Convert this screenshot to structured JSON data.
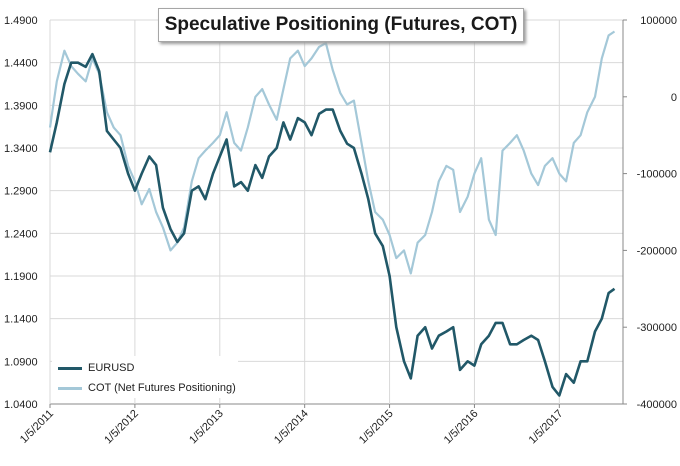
{
  "chart_data": {
    "type": "line",
    "title": "Speculative Positioning (Futures, COT)",
    "x_ticks": [
      "1/5/2011",
      "1/5/2012",
      "1/5/2013",
      "1/5/2014",
      "1/5/2015",
      "1/5/2016",
      "1/5/2017"
    ],
    "x_range": [
      2011.0,
      2017.75
    ],
    "y_left": {
      "ticks": [
        "1.4900",
        "1.4400",
        "1.3900",
        "1.3400",
        "1.2900",
        "1.2400",
        "1.1900",
        "1.1400",
        "1.0900",
        "1.0400"
      ],
      "range": [
        1.04,
        1.49
      ]
    },
    "y_right": {
      "ticks": [
        "100000",
        "0",
        "-100000",
        "-200000",
        "-300000",
        "-400000"
      ],
      "range": [
        -400000,
        100000
      ]
    },
    "grid": true,
    "legend_position": "bottom-left",
    "series": [
      {
        "name": "EURUSD",
        "axis": "left",
        "color": "#215868",
        "x": [
          2011.0,
          2011.08,
          2011.17,
          2011.25,
          2011.33,
          2011.42,
          2011.5,
          2011.58,
          2011.67,
          2011.75,
          2011.83,
          2011.92,
          2012.0,
          2012.08,
          2012.17,
          2012.25,
          2012.33,
          2012.42,
          2012.5,
          2012.58,
          2012.67,
          2012.75,
          2012.83,
          2012.92,
          2013.0,
          2013.08,
          2013.17,
          2013.25,
          2013.33,
          2013.42,
          2013.5,
          2013.58,
          2013.67,
          2013.75,
          2013.83,
          2013.92,
          2014.0,
          2014.08,
          2014.17,
          2014.25,
          2014.33,
          2014.42,
          2014.5,
          2014.58,
          2014.67,
          2014.75,
          2014.83,
          2014.92,
          2015.0,
          2015.08,
          2015.17,
          2015.25,
          2015.33,
          2015.42,
          2015.5,
          2015.58,
          2015.67,
          2015.75,
          2015.83,
          2015.92,
          2016.0,
          2016.08,
          2016.17,
          2016.25,
          2016.33,
          2016.42,
          2016.5,
          2016.58,
          2016.67,
          2016.75,
          2016.83,
          2016.92,
          2017.0,
          2017.08,
          2017.17,
          2017.25,
          2017.33,
          2017.42,
          2017.5,
          2017.58,
          2017.65
        ],
        "values": [
          1.335,
          1.37,
          1.415,
          1.44,
          1.44,
          1.435,
          1.45,
          1.43,
          1.36,
          1.35,
          1.34,
          1.31,
          1.29,
          1.31,
          1.33,
          1.32,
          1.27,
          1.245,
          1.23,
          1.24,
          1.29,
          1.295,
          1.28,
          1.31,
          1.33,
          1.35,
          1.295,
          1.3,
          1.29,
          1.32,
          1.305,
          1.33,
          1.34,
          1.37,
          1.35,
          1.375,
          1.37,
          1.355,
          1.38,
          1.385,
          1.385,
          1.36,
          1.345,
          1.34,
          1.31,
          1.28,
          1.24,
          1.225,
          1.19,
          1.13,
          1.09,
          1.07,
          1.12,
          1.13,
          1.105,
          1.12,
          1.125,
          1.13,
          1.08,
          1.09,
          1.085,
          1.11,
          1.12,
          1.135,
          1.135,
          1.11,
          1.11,
          1.115,
          1.12,
          1.115,
          1.09,
          1.06,
          1.05,
          1.075,
          1.065,
          1.09,
          1.09,
          1.125,
          1.14,
          1.17,
          1.175
        ]
      },
      {
        "name": "COT (Net Futures Positioning)",
        "axis": "right",
        "color": "#a4c8d8",
        "x": [
          2011.0,
          2011.08,
          2011.17,
          2011.25,
          2011.33,
          2011.42,
          2011.5,
          2011.58,
          2011.67,
          2011.75,
          2011.83,
          2011.92,
          2012.0,
          2012.08,
          2012.17,
          2012.25,
          2012.33,
          2012.42,
          2012.5,
          2012.58,
          2012.67,
          2012.75,
          2012.83,
          2012.92,
          2013.0,
          2013.08,
          2013.17,
          2013.25,
          2013.33,
          2013.42,
          2013.5,
          2013.58,
          2013.67,
          2013.75,
          2013.83,
          2013.92,
          2014.0,
          2014.08,
          2014.17,
          2014.25,
          2014.33,
          2014.42,
          2014.5,
          2014.58,
          2014.67,
          2014.75,
          2014.83,
          2014.92,
          2015.0,
          2015.08,
          2015.17,
          2015.25,
          2015.33,
          2015.42,
          2015.5,
          2015.58,
          2015.67,
          2015.75,
          2015.83,
          2015.92,
          2016.0,
          2016.08,
          2016.17,
          2016.25,
          2016.33,
          2016.42,
          2016.5,
          2016.58,
          2016.67,
          2016.75,
          2016.83,
          2016.92,
          2017.0,
          2017.08,
          2017.17,
          2017.25,
          2017.33,
          2017.42,
          2017.5,
          2017.58,
          2017.65
        ],
        "values": [
          -40000,
          20000,
          60000,
          40000,
          30000,
          20000,
          50000,
          30000,
          -20000,
          -40000,
          -50000,
          -90000,
          -110000,
          -140000,
          -120000,
          -150000,
          -170000,
          -200000,
          -190000,
          -170000,
          -110000,
          -80000,
          -70000,
          -60000,
          -50000,
          -20000,
          -60000,
          -70000,
          -40000,
          0,
          10000,
          -10000,
          -30000,
          10000,
          50000,
          60000,
          40000,
          50000,
          65000,
          70000,
          35000,
          5000,
          -10000,
          -5000,
          -60000,
          -110000,
          -150000,
          -160000,
          -180000,
          -210000,
          -200000,
          -230000,
          -190000,
          -180000,
          -150000,
          -110000,
          -90000,
          -95000,
          -150000,
          -130000,
          -100000,
          -80000,
          -160000,
          -180000,
          -70000,
          -60000,
          -50000,
          -70000,
          -100000,
          -115000,
          -90000,
          -80000,
          -100000,
          -110000,
          -60000,
          -50000,
          -20000,
          0,
          50000,
          80000,
          85000
        ]
      }
    ]
  }
}
